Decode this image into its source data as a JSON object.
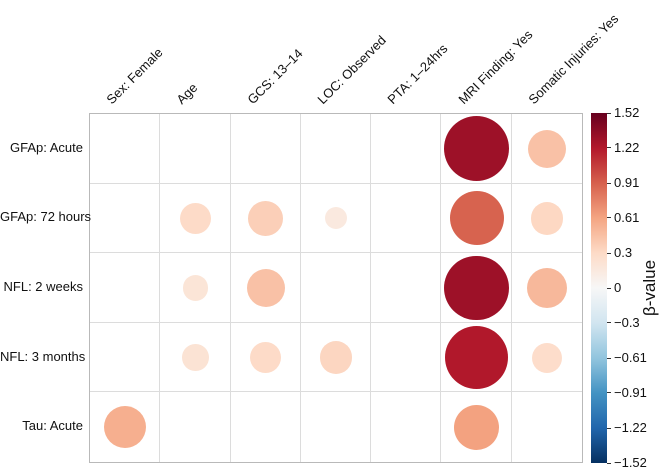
{
  "chart_data": {
    "type": "bubble-matrix",
    "title": "",
    "columns": [
      "Sex: Female",
      "Age",
      "GCS: 13–14",
      "LOC: Observed",
      "PTA: 1–24hrs",
      "MRI Finding: Yes",
      "Somatic Injuries: Yes"
    ],
    "rows": [
      "GFAp: Acute",
      "GFAp: 72 hours",
      "NFL: 2 weeks",
      "NFL: 3 months",
      "Tau: Acute"
    ],
    "values": [
      [
        null,
        null,
        null,
        null,
        null,
        1.3,
        0.45
      ],
      [
        null,
        0.3,
        0.37,
        0.15,
        null,
        0.9,
        0.32
      ],
      [
        null,
        0.2,
        0.45,
        null,
        null,
        1.3,
        0.5
      ],
      [
        null,
        0.22,
        0.3,
        0.33,
        null,
        1.22,
        0.28
      ],
      [
        0.55,
        null,
        null,
        null,
        null,
        0.62,
        null
      ]
    ],
    "size_rule": "circle area proportional to |beta|",
    "grid": true,
    "legend_position": "right-colorbar",
    "colorbar": {
      "label": "β-value",
      "min": -1.52,
      "max": 1.52,
      "ticks": [
        1.52,
        1.22,
        0.91,
        0.61,
        0.3,
        0,
        -0.3,
        -0.61,
        -0.91,
        -1.22,
        -1.52
      ],
      "tick_labels": [
        "1.52",
        "1.22",
        "0.91",
        "0.61",
        "0.3",
        "0",
        "−0.3",
        "−0.61",
        "−0.91",
        "−1.22",
        "−1.52"
      ]
    },
    "colormap": {
      "name": "RdBu_r",
      "stops": [
        [
          0.0,
          "#053061"
        ],
        [
          0.1,
          "#2166ac"
        ],
        [
          0.2,
          "#4393c3"
        ],
        [
          0.3,
          "#92c5de"
        ],
        [
          0.4,
          "#d1e5f0"
        ],
        [
          0.5,
          "#f7f7f7"
        ],
        [
          0.6,
          "#fddbc7"
        ],
        [
          0.7,
          "#f4a582"
        ],
        [
          0.8,
          "#d6604d"
        ],
        [
          0.9,
          "#b2182b"
        ],
        [
          1.0,
          "#67001f"
        ]
      ]
    }
  },
  "colors": {
    "background": "#ffffff",
    "grid_line": "#dcdcdc",
    "plot_border": "#b9b9b9",
    "text": "#111111"
  }
}
